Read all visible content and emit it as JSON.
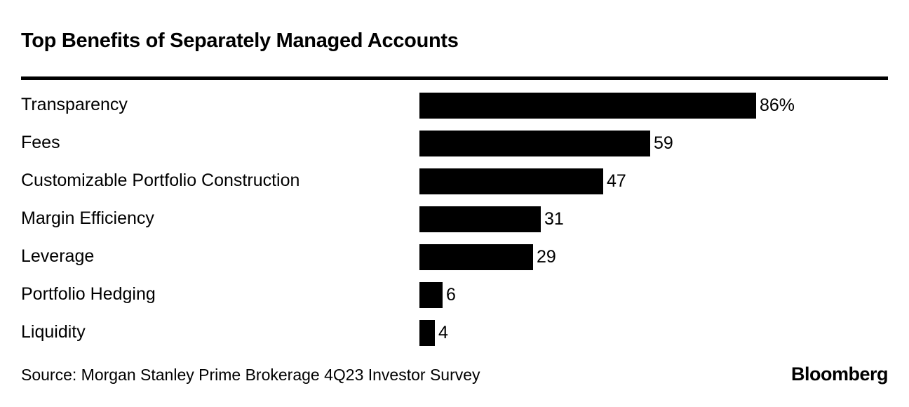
{
  "title": "Top Benefits of Separately Managed Accounts",
  "source": "Source: Morgan Stanley Prime Brokerage 4Q23 Investor Survey",
  "brand": "Bloomberg",
  "colors": {
    "bar": "#000000",
    "background": "#ffffff",
    "text": "#000000"
  },
  "chart_data": {
    "type": "bar",
    "orientation": "horizontal",
    "title": "Top Benefits of Separately Managed Accounts",
    "categories": [
      "Transparency",
      "Fees",
      "Customizable Portfolio Construction",
      "Margin Efficiency",
      "Leverage",
      "Portfolio Hedging",
      "Liquidity"
    ],
    "values": [
      86,
      59,
      47,
      31,
      29,
      6,
      4
    ],
    "value_labels": [
      "86%",
      "59",
      "47",
      "31",
      "29",
      "6",
      "4"
    ],
    "unit": "percent",
    "xlim": [
      0,
      100
    ],
    "grid": false,
    "legend": false,
    "source": "Source: Morgan Stanley Prime Brokerage 4Q23 Investor Survey"
  }
}
